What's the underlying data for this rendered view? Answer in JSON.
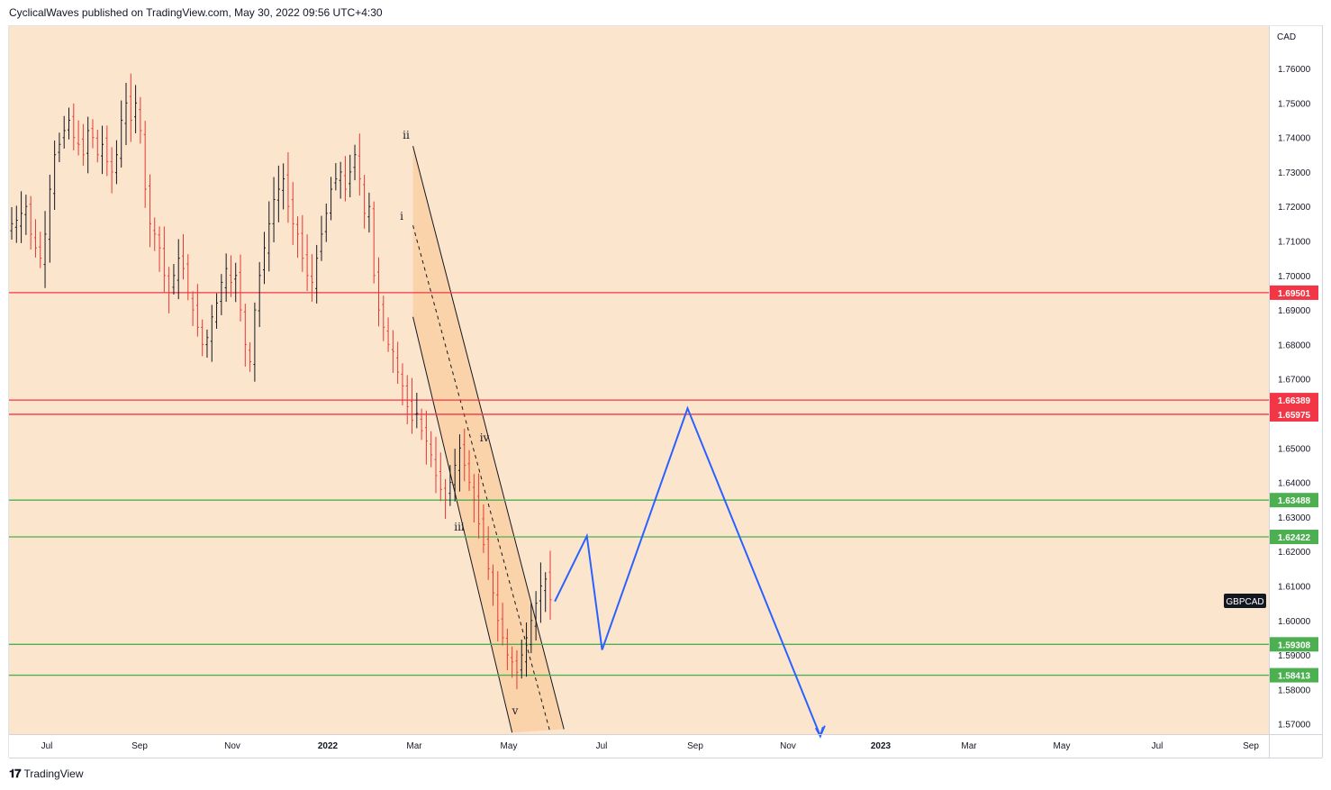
{
  "header": {
    "published": "CyclicalWaves published on TradingView.com, May 30, 2022 09:56 UTC+4:30"
  },
  "footer": {
    "brand": "TradingView",
    "logo_icon": "tradingview-logo-icon"
  },
  "colors": {
    "background": "#fce5cd",
    "up_candle": "#131722",
    "down_candle": "#e53935",
    "resistance": "#f23645",
    "support": "#4caf50",
    "projection": "#2962ff",
    "channel_fill": "#f9c48f"
  },
  "chart_data": {
    "type": "candlestick",
    "symbol": "GBPCAD",
    "currency": "CAD",
    "y_ticks": [
      "1.76000",
      "1.75000",
      "1.74000",
      "1.73000",
      "1.72000",
      "1.71000",
      "1.70000",
      "1.69000",
      "1.68000",
      "1.67000",
      "1.66000",
      "1.65000",
      "1.64000",
      "1.63000",
      "1.62000",
      "1.61000",
      "1.60000",
      "1.59000",
      "1.58000",
      "1.57000"
    ],
    "ylim": [
      1.5675,
      1.774
    ],
    "x_ticks": [
      "Jul",
      "Sep",
      "Nov",
      "2022",
      "Mar",
      "May",
      "Jul",
      "Sep",
      "Nov",
      "2023",
      "Mar",
      "May",
      "Jul",
      "Sep"
    ],
    "price_levels": [
      {
        "label": "1.69501",
        "value": 1.69501,
        "kind": "resistance"
      },
      {
        "label": "1.66389",
        "value": 1.66389,
        "kind": "resistance"
      },
      {
        "label": "1.65975",
        "value": 1.65975,
        "kind": "resistance"
      },
      {
        "label": "1.63488",
        "value": 1.63488,
        "kind": "support"
      },
      {
        "label": "1.62422",
        "value": 1.62422,
        "kind": "support"
      },
      {
        "label": "1.59308",
        "value": 1.59308,
        "kind": "support"
      },
      {
        "label": "1.58413",
        "value": 1.58413,
        "kind": "support"
      }
    ],
    "wave_labels": [
      "ii",
      "i",
      "iii",
      "iv",
      "v"
    ],
    "close_path": [
      1.715,
      1.716,
      1.718,
      1.72,
      1.712,
      1.708,
      1.705,
      1.712,
      1.725,
      1.735,
      1.738,
      1.742,
      1.745,
      1.74,
      1.738,
      1.735,
      1.742,
      1.74,
      1.735,
      1.738,
      1.733,
      1.73,
      1.735,
      1.745,
      1.75,
      1.745,
      1.75,
      1.742,
      1.725,
      1.715,
      1.712,
      1.708,
      1.7,
      1.695,
      1.7,
      1.705,
      1.702,
      1.695,
      1.69,
      1.685,
      1.68,
      1.682,
      1.688,
      1.692,
      1.698,
      1.702,
      1.698,
      1.7,
      1.69,
      1.68,
      1.675,
      1.69,
      1.7,
      1.708,
      1.715,
      1.722,
      1.725,
      1.728,
      1.72,
      1.715,
      1.712,
      1.705,
      1.7,
      1.698,
      1.705,
      1.712,
      1.718,
      1.725,
      1.728,
      1.73,
      1.725,
      1.73,
      1.735,
      1.728,
      1.718,
      1.72,
      1.7,
      1.69,
      1.685,
      1.68,
      1.678,
      1.672,
      1.668,
      1.662,
      1.658,
      1.66,
      1.655,
      1.652,
      1.648,
      1.642,
      1.638,
      1.635,
      1.64,
      1.645,
      1.65,
      1.645,
      1.64,
      1.635,
      1.628,
      1.622,
      1.615,
      1.608,
      1.6,
      1.595,
      1.59,
      1.588,
      1.585,
      1.59,
      1.595,
      1.6,
      1.605,
      1.61,
      1.612,
      1.606
    ],
    "projection": {
      "label": "",
      "points": [
        {
          "x": "2022-05-30",
          "y": 1.6055
        },
        {
          "x": "2022-06-20",
          "y": 1.6245
        },
        {
          "x": "2022-06-30",
          "y": 1.5915
        },
        {
          "x": "2022-08-25",
          "y": 1.6615
        },
        {
          "x": "2022-11-20",
          "y": 1.5665
        },
        {
          "x": "2022-11-23",
          "y": 1.5695
        }
      ]
    },
    "channel": {
      "upper": [
        {
          "x": "2022-02-26",
          "y": 1.7375
        },
        {
          "x": "2022-06-05",
          "y": 1.5685
        }
      ],
      "lower": [
        {
          "x": "2022-02-26",
          "y": 1.688
        },
        {
          "x": "2022-05-02",
          "y": 1.5675
        }
      ],
      "midline": [
        {
          "x": "2022-02-26",
          "y": 1.7145
        },
        {
          "x": "2022-05-27",
          "y": 1.5675
        }
      ]
    },
    "grid": false,
    "legend": "symbol-tag-right"
  }
}
